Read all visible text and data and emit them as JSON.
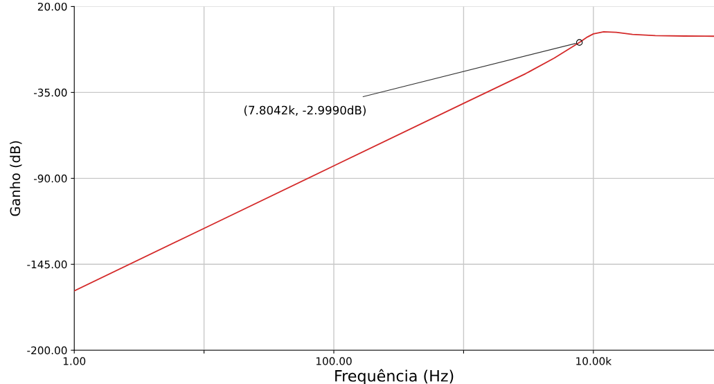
{
  "chart_data": {
    "type": "line",
    "xlabel": "Frequência (Hz)",
    "ylabel": "Ganho (dB)",
    "log": "x",
    "x": [
      1,
      10,
      100,
      1000,
      3000,
      5000,
      7804.2,
      9000,
      10000,
      12000,
      15000,
      20000,
      30000,
      50000,
      85000
    ],
    "series": [
      {
        "color": "#d42a2a",
        "values": [
          -162,
          -122,
          -82,
          -42,
          -23,
          -13,
          -2.999,
          0.5,
          2.5,
          3.8,
          3.5,
          2.2,
          1.4,
          1.1,
          1.0
        ]
      }
    ],
    "xlim": [
      1,
      85000
    ],
    "xticks": [
      {
        "value": 1,
        "label": "1.00"
      },
      {
        "value": 10,
        "label": null
      },
      {
        "value": 100,
        "label": "100.00"
      },
      {
        "value": 1000,
        "label": null
      },
      {
        "value": 10000,
        "label": "10.00k"
      }
    ],
    "ylim": [
      -200,
      20
    ],
    "yticks": [
      {
        "value": 20,
        "label": "20.00"
      },
      {
        "value": -35,
        "label": "-35.00"
      },
      {
        "value": -90,
        "label": "-90.00"
      },
      {
        "value": -145,
        "label": "-145.00"
      },
      {
        "value": -200,
        "label": "-200.00"
      }
    ],
    "grid": true,
    "annotations": [
      {
        "text": "(7.8042k, -2.9990dB)",
        "x": 7804.2,
        "y": -2.999
      }
    ]
  }
}
